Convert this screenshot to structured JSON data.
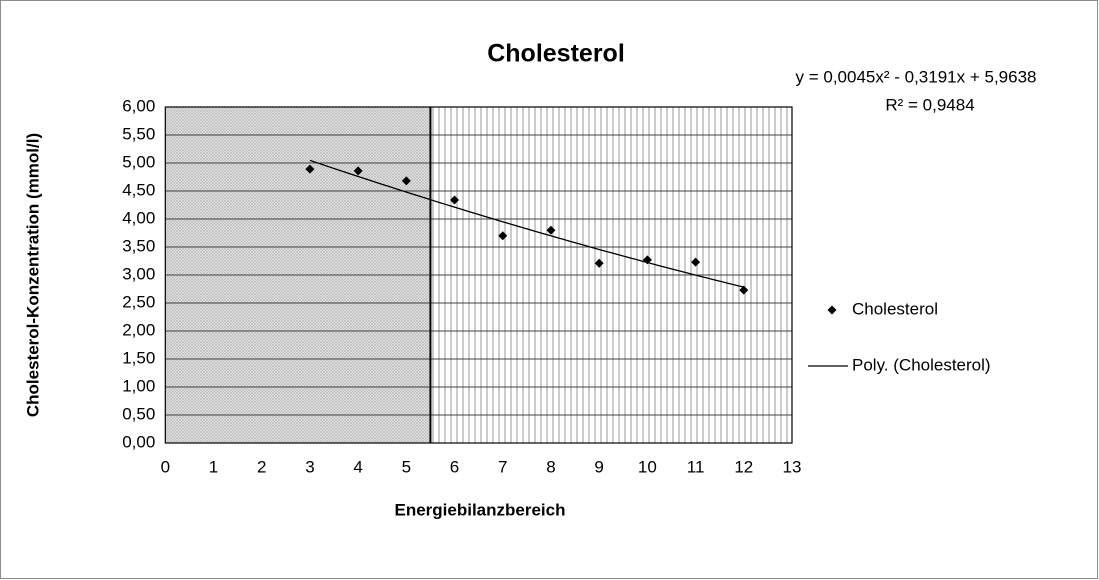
{
  "chart_data": {
    "type": "scatter",
    "title": "Cholesterol",
    "x_label": "Energiebilanzbereich",
    "y_label": "Cholesterol-Konzentration (mmol/l)",
    "x": [
      3,
      4,
      5,
      6,
      7,
      8,
      9,
      10,
      11,
      12
    ],
    "series": [
      {
        "name": "Cholesterol",
        "color": "#000000",
        "values": [
          4.89,
          4.86,
          4.68,
          4.34,
          3.7,
          3.8,
          3.21,
          3.27,
          3.23,
          2.73
        ]
      }
    ],
    "trendline": {
      "name": "Poly. (Cholesterol)",
      "color": "#000000",
      "coefficients": [
        0.0045,
        -0.3191,
        5.9638
      ],
      "x_range": [
        3,
        12
      ],
      "equation": "y = 0,0045x² - 0,3191x + 5,9638",
      "r_squared": "R² = 0,9484"
    },
    "regions": [
      {
        "from": 0,
        "to": 5.5,
        "pattern": "crosshatch"
      },
      {
        "from": 5.5,
        "to": 13,
        "pattern": "vertical-lines"
      }
    ],
    "divider": 5.5,
    "xlim": [
      0,
      13
    ],
    "xticks": [
      0,
      1,
      2,
      3,
      4,
      5,
      6,
      7,
      8,
      9,
      10,
      11,
      12,
      13
    ],
    "ylim": [
      0,
      6
    ],
    "yticks": [
      {
        "value": 0,
        "label": "0,00"
      },
      {
        "value": 0.5,
        "label": "0,50"
      },
      {
        "value": 1,
        "label": "1,00"
      },
      {
        "value": 1.5,
        "label": "1,50"
      },
      {
        "value": 2,
        "label": "2,00"
      },
      {
        "value": 2.5,
        "label": "2,50"
      },
      {
        "value": 3,
        "label": "3,00"
      },
      {
        "value": 3.5,
        "label": "3,50"
      },
      {
        "value": 4,
        "label": "4,00"
      },
      {
        "value": 4.5,
        "label": "4,50"
      },
      {
        "value": 5,
        "label": "5,00"
      },
      {
        "value": 5.5,
        "label": "5,50"
      },
      {
        "value": 6,
        "label": "6,00"
      }
    ],
    "grid": true,
    "legend": "right"
  }
}
